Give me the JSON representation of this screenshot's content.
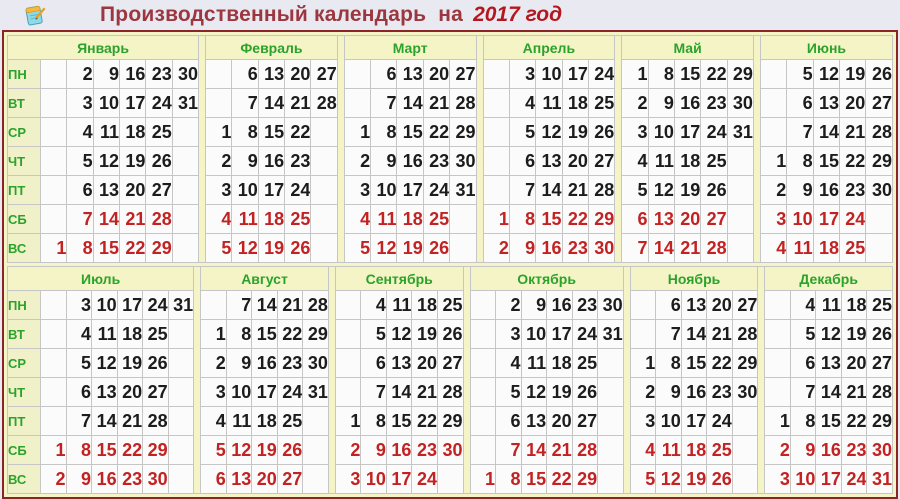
{
  "title": {
    "prefix": "Производственный календарь  на",
    "year": "2017 год"
  },
  "colors": {
    "page_background": "#e9e9f2",
    "frame_maroon": "#8b2525",
    "header_beige": "#f4f4c6",
    "month_green": "#2ba32b",
    "weekday_black": "#1c1c1c",
    "weekend_red": "#c32222",
    "title_maroon": "#9c3740",
    "title_year_red": "#b3181f"
  },
  "icons": [
    {
      "name": "notepad-icon"
    }
  ],
  "day_labels": [
    "ПН",
    "ВТ",
    "СР",
    "ЧТ",
    "ПТ",
    "СБ",
    "ВС"
  ],
  "weekend_row_indexes": [
    5,
    6
  ],
  "halves": [
    {
      "months": [
        {
          "name": "Январь",
          "cols": 6,
          "rows": [
            [
              "",
              "2",
              "9",
              "16",
              "23",
              "30"
            ],
            [
              "",
              "3",
              "10",
              "17",
              "24",
              "31"
            ],
            [
              "",
              "4",
              "11",
              "18",
              "25",
              ""
            ],
            [
              "",
              "5",
              "12",
              "19",
              "26",
              ""
            ],
            [
              "",
              "6",
              "13",
              "20",
              "27",
              ""
            ],
            [
              "",
              "7",
              "14",
              "21",
              "28",
              ""
            ],
            [
              "1",
              "8",
              "15",
              "22",
              "29",
              ""
            ]
          ]
        },
        {
          "name": "Февраль",
          "cols": 5,
          "rows": [
            [
              "",
              "6",
              "13",
              "20",
              "27"
            ],
            [
              "",
              "7",
              "14",
              "21",
              "28"
            ],
            [
              "1",
              "8",
              "15",
              "22",
              ""
            ],
            [
              "2",
              "9",
              "16",
              "23",
              ""
            ],
            [
              "3",
              "10",
              "17",
              "24",
              ""
            ],
            [
              "4",
              "11",
              "18",
              "25",
              ""
            ],
            [
              "5",
              "12",
              "19",
              "26",
              ""
            ]
          ]
        },
        {
          "name": "Март",
          "cols": 5,
          "rows": [
            [
              "",
              "6",
              "13",
              "20",
              "27"
            ],
            [
              "",
              "7",
              "14",
              "21",
              "28"
            ],
            [
              "1",
              "8",
              "15",
              "22",
              "29"
            ],
            [
              "2",
              "9",
              "16",
              "23",
              "30"
            ],
            [
              "3",
              "10",
              "17",
              "24",
              "31"
            ],
            [
              "4",
              "11",
              "18",
              "25",
              ""
            ],
            [
              "5",
              "12",
              "19",
              "26",
              ""
            ]
          ]
        },
        {
          "name": "Апрель",
          "cols": 5,
          "rows": [
            [
              "",
              "3",
              "10",
              "17",
              "24"
            ],
            [
              "",
              "4",
              "11",
              "18",
              "25"
            ],
            [
              "",
              "5",
              "12",
              "19",
              "26"
            ],
            [
              "",
              "6",
              "13",
              "20",
              "27"
            ],
            [
              "",
              "7",
              "14",
              "21",
              "28"
            ],
            [
              "1",
              "8",
              "15",
              "22",
              "29"
            ],
            [
              "2",
              "9",
              "16",
              "23",
              "30"
            ]
          ]
        },
        {
          "name": "Май",
          "cols": 5,
          "rows": [
            [
              "1",
              "8",
              "15",
              "22",
              "29"
            ],
            [
              "2",
              "9",
              "16",
              "23",
              "30"
            ],
            [
              "3",
              "10",
              "17",
              "24",
              "31"
            ],
            [
              "4",
              "11",
              "18",
              "25",
              ""
            ],
            [
              "5",
              "12",
              "19",
              "26",
              ""
            ],
            [
              "6",
              "13",
              "20",
              "27",
              ""
            ],
            [
              "7",
              "14",
              "21",
              "28",
              ""
            ]
          ]
        },
        {
          "name": "Июнь",
          "cols": 5,
          "rows": [
            [
              "",
              "5",
              "12",
              "19",
              "26"
            ],
            [
              "",
              "6",
              "13",
              "20",
              "27"
            ],
            [
              "",
              "7",
              "14",
              "21",
              "28"
            ],
            [
              "1",
              "8",
              "15",
              "22",
              "29"
            ],
            [
              "2",
              "9",
              "16",
              "23",
              "30"
            ],
            [
              "3",
              "10",
              "17",
              "24",
              ""
            ],
            [
              "4",
              "11",
              "18",
              "25",
              ""
            ]
          ]
        }
      ]
    },
    {
      "months": [
        {
          "name": "Июль",
          "cols": 6,
          "rows": [
            [
              "",
              "3",
              "10",
              "17",
              "24",
              "31"
            ],
            [
              "",
              "4",
              "11",
              "18",
              "25",
              ""
            ],
            [
              "",
              "5",
              "12",
              "19",
              "26",
              ""
            ],
            [
              "",
              "6",
              "13",
              "20",
              "27",
              ""
            ],
            [
              "",
              "7",
              "14",
              "21",
              "28",
              ""
            ],
            [
              "1",
              "8",
              "15",
              "22",
              "29",
              ""
            ],
            [
              "2",
              "9",
              "16",
              "23",
              "30",
              ""
            ]
          ]
        },
        {
          "name": "Август",
          "cols": 5,
          "rows": [
            [
              "",
              "7",
              "14",
              "21",
              "28"
            ],
            [
              "1",
              "8",
              "15",
              "22",
              "29"
            ],
            [
              "2",
              "9",
              "16",
              "23",
              "30"
            ],
            [
              "3",
              "10",
              "17",
              "24",
              "31"
            ],
            [
              "4",
              "11",
              "18",
              "25",
              ""
            ],
            [
              "5",
              "12",
              "19",
              "26",
              ""
            ],
            [
              "6",
              "13",
              "20",
              "27",
              ""
            ]
          ]
        },
        {
          "name": "Сентябрь",
          "cols": 5,
          "rows": [
            [
              "",
              "4",
              "11",
              "18",
              "25"
            ],
            [
              "",
              "5",
              "12",
              "19",
              "26"
            ],
            [
              "",
              "6",
              "13",
              "20",
              "27"
            ],
            [
              "",
              "7",
              "14",
              "21",
              "28"
            ],
            [
              "1",
              "8",
              "15",
              "22",
              "29"
            ],
            [
              "2",
              "9",
              "16",
              "23",
              "30"
            ],
            [
              "3",
              "10",
              "17",
              "24",
              ""
            ]
          ]
        },
        {
          "name": "Октябрь",
          "cols": 6,
          "rows": [
            [
              "",
              "2",
              "9",
              "16",
              "23",
              "30"
            ],
            [
              "",
              "3",
              "10",
              "17",
              "24",
              "31"
            ],
            [
              "",
              "4",
              "11",
              "18",
              "25",
              ""
            ],
            [
              "",
              "5",
              "12",
              "19",
              "26",
              ""
            ],
            [
              "",
              "6",
              "13",
              "20",
              "27",
              ""
            ],
            [
              "",
              "7",
              "14",
              "21",
              "28",
              ""
            ],
            [
              "1",
              "8",
              "15",
              "22",
              "29",
              ""
            ]
          ]
        },
        {
          "name": "Ноябрь",
          "cols": 5,
          "rows": [
            [
              "",
              "6",
              "13",
              "20",
              "27"
            ],
            [
              "",
              "7",
              "14",
              "21",
              "28"
            ],
            [
              "1",
              "8",
              "15",
              "22",
              "29"
            ],
            [
              "2",
              "9",
              "16",
              "23",
              "30"
            ],
            [
              "3",
              "10",
              "17",
              "24",
              ""
            ],
            [
              "4",
              "11",
              "18",
              "25",
              ""
            ],
            [
              "5",
              "12",
              "19",
              "26",
              ""
            ]
          ]
        },
        {
          "name": "Декабрь",
          "cols": 5,
          "rows": [
            [
              "",
              "4",
              "11",
              "18",
              "25"
            ],
            [
              "",
              "5",
              "12",
              "19",
              "26"
            ],
            [
              "",
              "6",
              "13",
              "20",
              "27"
            ],
            [
              "",
              "7",
              "14",
              "21",
              "28"
            ],
            [
              "1",
              "8",
              "15",
              "22",
              "29"
            ],
            [
              "2",
              "9",
              "16",
              "23",
              "30"
            ],
            [
              "3",
              "10",
              "17",
              "24",
              "31"
            ]
          ]
        }
      ]
    }
  ]
}
